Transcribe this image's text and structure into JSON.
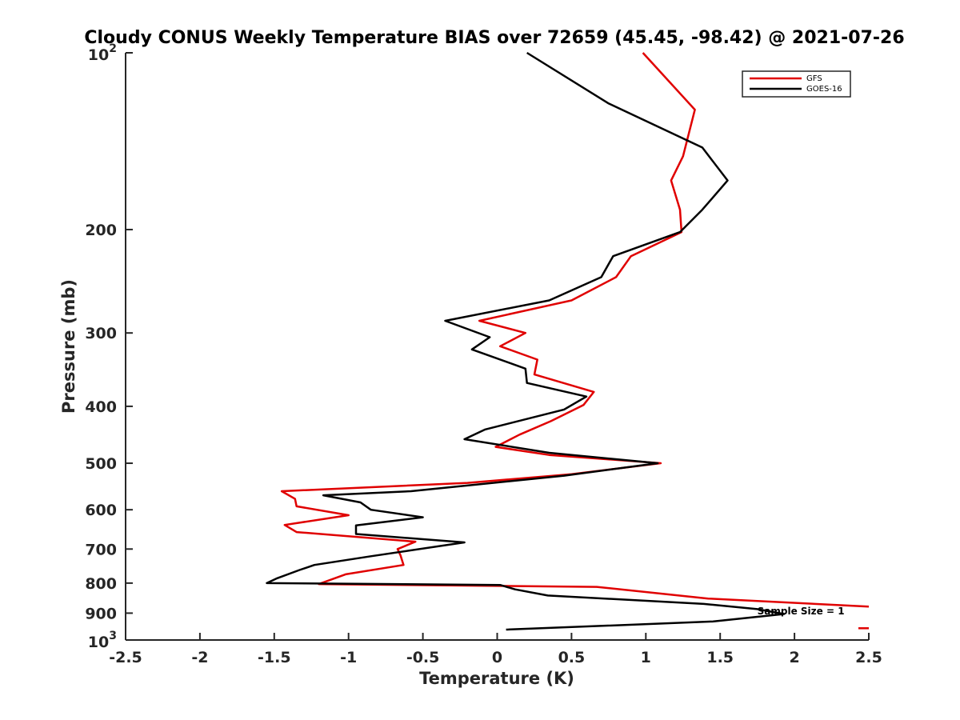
{
  "chart_data": {
    "type": "line",
    "title": "Cloudy CONUS Weekly Temperature BIAS over 72659 (45.45, -98.42) @ 2021-07-26",
    "xlabel": "Temperature (K)",
    "ylabel": "Pressure (mb)",
    "xlim": [
      -2.5,
      2.5
    ],
    "ylim": [
      100,
      1000
    ],
    "y_scale": "log",
    "y_reversed": true,
    "grid": false,
    "legend_position": "top-right",
    "x_ticks": [
      "-2.5",
      "-2",
      "-1.5",
      "-1",
      "-0.5",
      "0",
      "0.5",
      "1",
      "1.5",
      "2",
      "2.5"
    ],
    "x_tick_values": [
      -2.5,
      -2,
      -1.5,
      -1,
      -0.5,
      0,
      0.5,
      1,
      1.5,
      2,
      2.5
    ],
    "y_ticks": [
      {
        "value": 100,
        "base": "10",
        "exp": "2"
      },
      {
        "value": 200,
        "base": "200",
        "exp": ""
      },
      {
        "value": 300,
        "base": "300",
        "exp": ""
      },
      {
        "value": 400,
        "base": "400",
        "exp": ""
      },
      {
        "value": 500,
        "base": "500",
        "exp": ""
      },
      {
        "value": 600,
        "base": "600",
        "exp": ""
      },
      {
        "value": 700,
        "base": "700",
        "exp": ""
      },
      {
        "value": 800,
        "base": "800",
        "exp": ""
      },
      {
        "value": 900,
        "base": "900",
        "exp": ""
      },
      {
        "value": 1000,
        "base": "10",
        "exp": "3"
      }
    ],
    "series": [
      {
        "name": "GFS",
        "color": "#e00000",
        "points": [
          [
            0.98,
            100
          ],
          [
            1.33,
            125
          ],
          [
            1.25,
            150
          ],
          [
            1.17,
            165
          ],
          [
            1.23,
            185
          ],
          [
            1.24,
            202
          ],
          [
            0.9,
            222
          ],
          [
            0.8,
            241
          ],
          [
            0.5,
            264
          ],
          [
            -0.12,
            286
          ],
          [
            0.19,
            300
          ],
          [
            0.02,
            316
          ],
          [
            0.27,
            333
          ],
          [
            0.25,
            353
          ],
          [
            0.65,
            378
          ],
          [
            0.58,
            398
          ],
          [
            0.36,
            424
          ],
          [
            0.15,
            447
          ],
          [
            -0.01,
            469
          ],
          [
            0.35,
            484
          ],
          [
            1.1,
            500
          ],
          [
            0.5,
            522
          ],
          [
            -0.2,
            540
          ],
          [
            -1.45,
            558
          ],
          [
            -1.36,
            575
          ],
          [
            -1.35,
            592
          ],
          [
            -1.0,
            613
          ],
          [
            -1.43,
            637
          ],
          [
            -1.35,
            655
          ],
          [
            -0.55,
            680
          ],
          [
            -0.67,
            700
          ],
          [
            -0.65,
            718
          ],
          [
            -0.63,
            745
          ],
          [
            -1.02,
            773
          ],
          [
            -1.2,
            803
          ],
          [
            0.67,
            812
          ],
          [
            1.42,
            850
          ],
          [
            2.5,
            877
          ]
        ]
      },
      {
        "name": "GOES-16",
        "color": "#000000",
        "points": [
          [
            0.2,
            100
          ],
          [
            0.75,
            122
          ],
          [
            1.38,
            145
          ],
          [
            1.55,
            165
          ],
          [
            1.38,
            185
          ],
          [
            1.23,
            202
          ],
          [
            0.78,
            222
          ],
          [
            0.7,
            241
          ],
          [
            0.35,
            264
          ],
          [
            -0.35,
            286
          ],
          [
            -0.05,
            305
          ],
          [
            -0.17,
            320
          ],
          [
            0.19,
            345
          ],
          [
            0.2,
            365
          ],
          [
            0.6,
            385
          ],
          [
            0.45,
            405
          ],
          [
            -0.08,
            438
          ],
          [
            -0.22,
            455
          ],
          [
            0.35,
            480
          ],
          [
            1.08,
            500
          ],
          [
            0.45,
            525
          ],
          [
            -0.58,
            558
          ],
          [
            -1.17,
            567
          ],
          [
            -0.92,
            583
          ],
          [
            -0.85,
            600
          ],
          [
            -0.5,
            618
          ],
          [
            -0.95,
            638
          ],
          [
            -0.95,
            660
          ],
          [
            -0.22,
            682
          ],
          [
            -0.85,
            720
          ],
          [
            -1.23,
            745
          ],
          [
            -1.33,
            760
          ],
          [
            -1.48,
            785
          ],
          [
            -1.55,
            800
          ],
          [
            0.02,
            806
          ],
          [
            0.12,
            820
          ],
          [
            0.34,
            840
          ],
          [
            1.39,
            868
          ],
          [
            1.75,
            886
          ],
          [
            1.93,
            903
          ],
          [
            1.45,
            930
          ],
          [
            0.06,
            960
          ]
        ]
      }
    ],
    "extra_segments": [
      {
        "series": "GFS",
        "points": [
          [
            2.43,
            955
          ],
          [
            2.5,
            955
          ]
        ]
      }
    ],
    "annotations": [
      {
        "text": "Sample Size = 1",
        "x": 1.75,
        "y": 905
      }
    ]
  }
}
